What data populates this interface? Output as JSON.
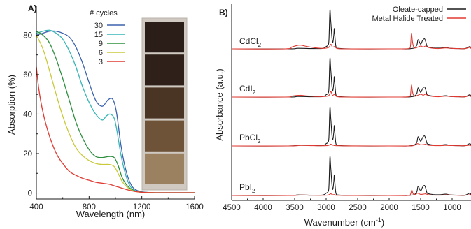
{
  "chart_data": [
    {
      "panel_label": "A)",
      "type": "line",
      "xlabel": "Wavelength (nm)",
      "ylabel": "Absorption (%)",
      "xlim": [
        400,
        1600
      ],
      "ylim": [
        -3,
        95
      ],
      "x_ticks": [
        400,
        800,
        1200,
        1600
      ],
      "y_ticks": [
        0,
        20,
        40,
        60,
        80
      ],
      "legend_title": "# cycles",
      "legend_position": "top-right",
      "inset_photo_swatches": [
        "#2b1d17",
        "#2f211a",
        "#4a3524",
        "#6e5338",
        "#9c8161"
      ],
      "series": [
        {
          "name": "30",
          "color": "#3b62ad",
          "x": [
            400,
            450,
            500,
            550,
            600,
            650,
            700,
            750,
            800,
            850,
            900,
            940,
            970,
            990,
            1010,
            1040,
            1070,
            1100,
            1130,
            1160,
            1190,
            1220,
            1260,
            1300,
            1400,
            1500,
            1600
          ],
          "y": [
            80,
            81,
            82,
            82,
            81,
            79,
            74,
            66,
            56,
            47,
            44,
            47,
            48,
            46,
            40,
            25,
            14,
            7,
            3,
            1.5,
            0.8,
            0.5,
            0.3,
            0.2,
            0.2,
            0.2,
            0.2
          ]
        },
        {
          "name": "15",
          "color": "#37b5b5",
          "x": [
            400,
            450,
            500,
            550,
            600,
            650,
            700,
            750,
            800,
            850,
            900,
            930,
            960,
            990,
            1010,
            1040,
            1070,
            1100,
            1130,
            1160,
            1190,
            1220,
            1260,
            1300,
            1400,
            1500,
            1600
          ],
          "y": [
            81,
            82,
            82.5,
            81,
            78,
            72,
            64,
            54,
            46,
            40,
            37,
            39,
            40,
            38,
            32,
            20,
            11,
            5,
            2,
            1,
            0.5,
            0.3,
            0.2,
            0.2,
            0.2,
            0.2,
            0.2
          ]
        },
        {
          "name": "9",
          "color": "#2e8f3f",
          "x": [
            400,
            450,
            500,
            550,
            600,
            650,
            700,
            750,
            800,
            850,
            900,
            950,
            990,
            1020,
            1050,
            1080,
            1110,
            1140,
            1170,
            1200,
            1240,
            1300,
            1400,
            1500,
            1600
          ],
          "y": [
            82,
            80,
            76,
            68,
            58,
            47,
            36,
            28,
            22,
            18.5,
            18,
            18.5,
            18,
            14,
            8,
            4.5,
            2.5,
            1.3,
            0.7,
            0.4,
            0.3,
            0.2,
            0.2,
            0.2,
            0.2
          ]
        },
        {
          "name": "6",
          "color": "#c9c93a",
          "x": [
            400,
            450,
            500,
            550,
            600,
            650,
            700,
            750,
            800,
            850,
            900,
            950,
            990,
            1020,
            1050,
            1080,
            1110,
            1140,
            1170,
            1200,
            1240,
            1300,
            1400,
            1500,
            1600
          ],
          "y": [
            80,
            73,
            62,
            50,
            39,
            30,
            23,
            19,
            16.5,
            15,
            14.5,
            14.5,
            13.5,
            10,
            6,
            3.5,
            2,
            1,
            0.6,
            0.4,
            0.3,
            0.2,
            0.2,
            0.2,
            0.2
          ]
        },
        {
          "name": "3",
          "color": "#e03a32",
          "x": [
            400,
            420,
            450,
            480,
            520,
            560,
            600,
            650,
            700,
            750,
            800,
            850,
            900,
            950,
            1000,
            1050,
            1100,
            1150,
            1200,
            1300,
            1400,
            1500,
            1600
          ],
          "y": [
            64,
            52,
            41,
            33,
            25,
            19,
            15,
            11,
            9,
            7.5,
            6.5,
            5.5,
            5,
            4.5,
            3.5,
            2.5,
            1.5,
            0.8,
            0.4,
            0.2,
            0.2,
            0.2,
            0.2
          ]
        }
      ]
    },
    {
      "panel_label": "B)",
      "type": "line",
      "xlabel_main": "Wavenumber (cm",
      "xlabel_sup": "-1",
      "xlabel_close": ")",
      "ylabel": "Absorbance (a.u.)",
      "xlim": [
        4500,
        700
      ],
      "x_reversed": true,
      "x_ticks": [
        4500,
        4000,
        3500,
        3000,
        2500,
        2000,
        1500,
        1000
      ],
      "legend_position": "top-right",
      "legend": [
        {
          "name": "Oleate-capped",
          "color": "#1a1a1a"
        },
        {
          "name": "Metal Halide Treated",
          "color": "#e03a32"
        }
      ],
      "spectra_note": "Four vertically offset traces; y values in arbitrary absorbance units (0 = baseline of each trace).",
      "traces": [
        {
          "label_main": "CdCl",
          "label_sub": "2",
          "oleate": {
            "x": [
              4500,
              3600,
              3450,
              3200,
              3050,
              3000,
              2970,
              2955,
              2940,
              2925,
              2900,
              2880,
              2870,
              2855,
              2840,
              2800,
              2600,
              2000,
              1800,
              1700,
              1650,
              1600,
              1560,
              1540,
              1500,
              1470,
              1440,
              1420,
              1400,
              1380,
              1300,
              1200,
              1100,
              1050,
              1000,
              900,
              800,
              720,
              700
            ],
            "y": [
              0,
              0,
              0.6,
              0.3,
              0.5,
              2.5,
              4,
              10,
              42,
              28,
              7,
              14,
              22,
              8,
              1.5,
              0.5,
              0,
              0,
              0,
              0,
              0.4,
              1,
              4,
              10,
              5,
              9,
              11,
              8,
              3,
              2,
              1,
              0.8,
              1.5,
              0.8,
              0.5,
              0.3,
              0.2,
              2.5,
              0.5
            ]
          },
          "treated": {
            "x": [
              4500,
              3650,
              3550,
              3420,
              3300,
              3150,
              3050,
              2960,
              2925,
              2900,
              2860,
              2830,
              2700,
              2200,
              1800,
              1680,
              1660,
              1645,
              1630,
              1610,
              1580,
              1500,
              1460,
              1420,
              1380,
              1300,
              1200,
              1100,
              1000,
              900,
              800,
              720,
              700
            ],
            "y": [
              0,
              0,
              2,
              4,
              2.5,
              1,
              0.5,
              1.5,
              5,
              2,
              2.5,
              0.5,
              0,
              0,
              0,
              0.5,
              4,
              17,
              8,
              2,
              1,
              3,
              2,
              3,
              1.5,
              0.6,
              0.4,
              1,
              0.5,
              0.3,
              0.2,
              1.5,
              0.3
            ]
          }
        },
        {
          "label_main": "CdI",
          "label_sub": "2",
          "oleate": {
            "x": [
              4500,
              3600,
              3450,
              3200,
              3050,
              3000,
              2970,
              2955,
              2940,
              2925,
              2900,
              2880,
              2870,
              2855,
              2840,
              2800,
              2600,
              2000,
              1800,
              1700,
              1650,
              1600,
              1560,
              1540,
              1500,
              1470,
              1440,
              1420,
              1400,
              1380,
              1300,
              1200,
              1100,
              1050,
              1000,
              900,
              800,
              720,
              700
            ],
            "y": [
              0,
              0,
              0.6,
              0.3,
              0.5,
              2.5,
              4,
              10,
              42,
              28,
              7,
              14,
              22,
              8,
              1.5,
              0.5,
              0,
              0,
              0,
              0,
              0.4,
              1,
              4,
              10,
              5,
              9,
              11,
              8,
              3,
              2,
              1,
              0.8,
              1.5,
              0.8,
              0.5,
              0.3,
              0.2,
              2.5,
              0.5
            ]
          },
          "treated": {
            "x": [
              4500,
              3650,
              3550,
              3420,
              3300,
              3150,
              3050,
              2960,
              2925,
              2900,
              2860,
              2830,
              2700,
              2200,
              1800,
              1680,
              1660,
              1645,
              1630,
              1610,
              1580,
              1500,
              1460,
              1420,
              1380,
              1300,
              1200,
              1100,
              1000,
              900,
              800,
              720,
              700
            ],
            "y": [
              0,
              0,
              1,
              2,
              1.2,
              0.6,
              0.5,
              1.5,
              6,
              2,
              3,
              0.5,
              0,
              0,
              0,
              0.5,
              3,
              13,
              6,
              1.5,
              1,
              3,
              2,
              3,
              1.5,
              0.6,
              0.4,
              1,
              0.5,
              0.3,
              0.2,
              1.5,
              0.3
            ]
          }
        },
        {
          "label_main": "PbCl",
          "label_sub": "2",
          "oleate": {
            "x": [
              4500,
              3600,
              3450,
              3200,
              3050,
              3000,
              2970,
              2955,
              2940,
              2925,
              2900,
              2880,
              2870,
              2855,
              2840,
              2800,
              2600,
              2000,
              1800,
              1700,
              1650,
              1600,
              1560,
              1540,
              1500,
              1470,
              1440,
              1420,
              1400,
              1380,
              1300,
              1200,
              1100,
              1050,
              1000,
              900,
              800,
              720,
              700
            ],
            "y": [
              0,
              0,
              0.8,
              0.4,
              0.5,
              2.5,
              4,
              10,
              42,
              28,
              7,
              14,
              22,
              8,
              1.5,
              0.5,
              0,
              0,
              0,
              0,
              0.4,
              1,
              4,
              10,
              5,
              9,
              11,
              8,
              3,
              2,
              1,
              0.8,
              1.5,
              0.8,
              0.5,
              0.3,
              0.2,
              2.5,
              0.5
            ]
          },
          "treated": {
            "x": [
              4500,
              3600,
              3400,
              3200,
              3000,
              2950,
              2925,
              2900,
              2860,
              2800,
              2000,
              1700,
              1620,
              1580,
              1550,
              1500,
              1450,
              1420,
              1380,
              1300,
              1200,
              1100,
              1000,
              800,
              720,
              700
            ],
            "y": [
              0,
              0,
              0.6,
              0.3,
              0.3,
              1,
              2,
              0.8,
              1,
              0.2,
              0,
              0,
              0.3,
              1.2,
              2.5,
              1.2,
              1.5,
              1.8,
              0.8,
              0.4,
              0.3,
              0.6,
              0.4,
              0.2,
              0.8,
              0.2
            ]
          }
        },
        {
          "label_main": "PbI",
          "label_sub": "2",
          "oleate": {
            "x": [
              4500,
              3600,
              3450,
              3200,
              3050,
              3000,
              2970,
              2955,
              2940,
              2925,
              2900,
              2880,
              2870,
              2855,
              2840,
              2800,
              2600,
              2000,
              1800,
              1700,
              1650,
              1600,
              1560,
              1540,
              1500,
              1470,
              1440,
              1420,
              1400,
              1380,
              1300,
              1200,
              1100,
              1050,
              1000,
              900,
              800,
              720,
              700
            ],
            "y": [
              0,
              0,
              0.6,
              0.3,
              0.5,
              2.5,
              4,
              10,
              42,
              28,
              7,
              14,
              22,
              8,
              1.5,
              0.5,
              0,
              0,
              0,
              0,
              0.4,
              1,
              4,
              10,
              5,
              9,
              11,
              8,
              3,
              2,
              1,
              0.8,
              1.5,
              0.8,
              0.5,
              0.3,
              0.2,
              2.5,
              0.5
            ]
          },
          "treated": {
            "x": [
              4500,
              3600,
              3400,
              3200,
              3000,
              2950,
              2925,
              2900,
              2860,
              2800,
              2000,
              1700,
              1660,
              1640,
              1620,
              1580,
              1550,
              1500,
              1450,
              1420,
              1380,
              1300,
              1200,
              1100,
              1000,
              800,
              720,
              700
            ],
            "y": [
              0,
              0,
              0.5,
              0.3,
              0.3,
              1,
              2,
              0.8,
              1,
              0.2,
              0,
              0,
              1.5,
              6,
              2,
              1.2,
              2.5,
              1.2,
              1.5,
              1.8,
              0.8,
              0.4,
              0.3,
              0.6,
              0.4,
              0.2,
              0.8,
              0.2
            ]
          }
        }
      ]
    }
  ]
}
